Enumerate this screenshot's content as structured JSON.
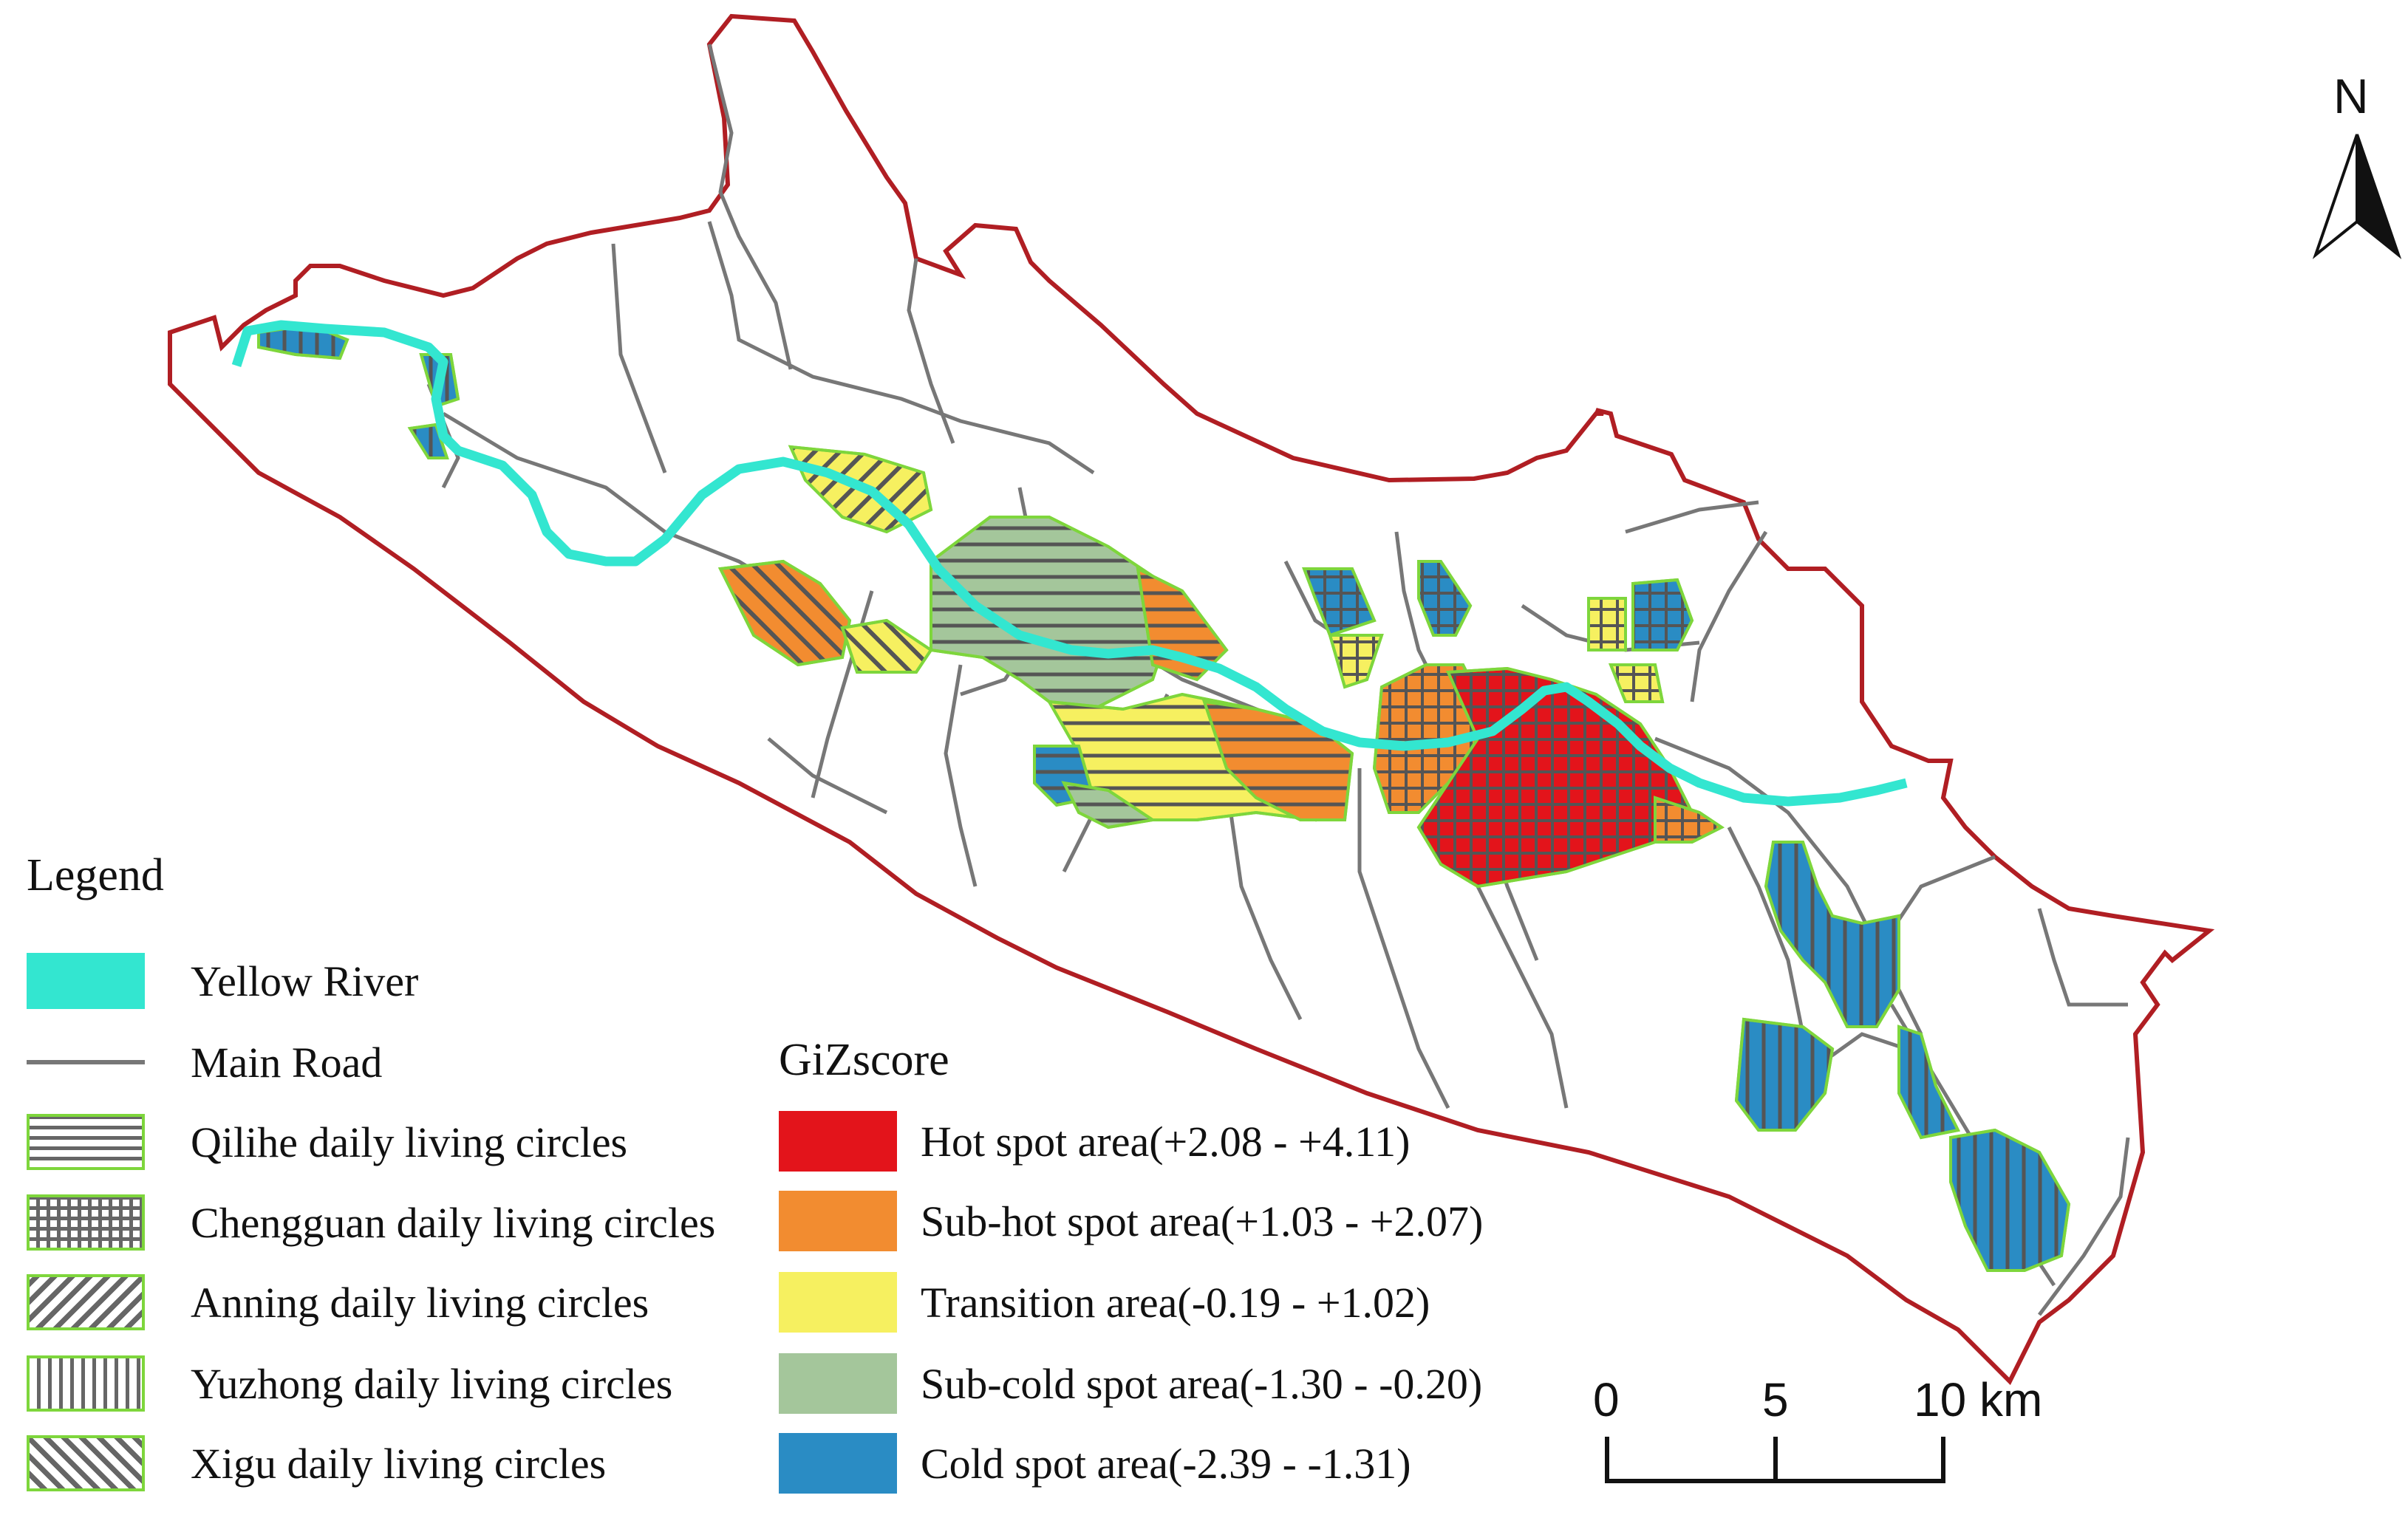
{
  "north_label": "N",
  "legend": {
    "title": "Legend",
    "items": [
      {
        "label": "Yellow River",
        "symbol": "river",
        "color": "#33E6D0"
      },
      {
        "label": "Main Road",
        "symbol": "road",
        "color": "#777777"
      },
      {
        "label": "Qilihe  daily living circles",
        "symbol": "hatch-horizontal"
      },
      {
        "label": "Chengguan  daily living circles",
        "symbol": "hatch-grid"
      },
      {
        "label": "Anning daily living circles",
        "symbol": "hatch-diagonal-up"
      },
      {
        "label": "Yuzhong daily living circles",
        "symbol": "hatch-vertical"
      },
      {
        "label": "Xigu daily living circles",
        "symbol": "hatch-diagonal-down"
      }
    ]
  },
  "gizscore": {
    "title": "GiZscore",
    "classes": [
      {
        "label": "Hot spot area(+2.08 - +4.11)",
        "color": "#E3141B"
      },
      {
        "label": "Sub-hot spot area(+1.03 - +2.07)",
        "color": "#F28C30"
      },
      {
        "label": "Transition area(-0.19 - +1.02)",
        "color": "#F6F060"
      },
      {
        "label": "Sub-cold spot area(-1.30 - -0.20)",
        "color": "#A4C69B"
      },
      {
        "label": "Cold spot area(-2.39 - -1.31)",
        "color": "#2A8CC4"
      }
    ]
  },
  "scale_bar": {
    "labels": [
      "0",
      "5",
      "10 km"
    ]
  },
  "colors": {
    "boundary": "#B01E23",
    "zone_outline": "#7ED63C",
    "river": "#33E6D0",
    "road": "#777777"
  }
}
